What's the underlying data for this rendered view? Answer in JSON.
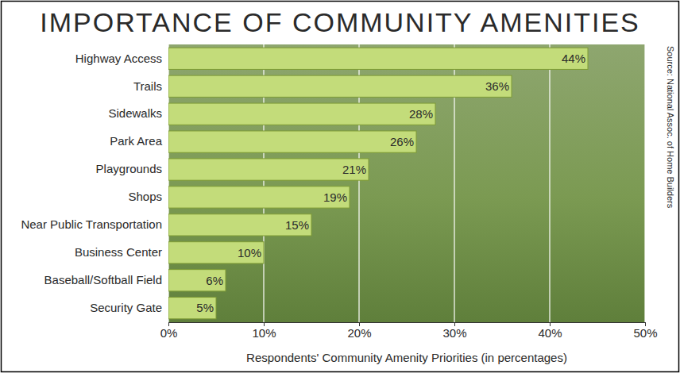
{
  "chart_data": {
    "type": "bar",
    "orientation": "horizontal",
    "title": "IMPORTANCE OF COMMUNITY AMENITIES",
    "x_label": "Respondents' Community Amenity Priorities (in percentages)",
    "annotations": [
      "Source: National Assoc. of Home Builders"
    ],
    "categories": [
      "Highway Access",
      "Trails",
      "Sidewalks",
      "Park Area",
      "Playgrounds",
      "Shops",
      "Near Public Transportation",
      "Business Center",
      "Baseball/Softball Field",
      "Security Gate"
    ],
    "values": [
      44,
      36,
      28,
      26,
      21,
      19,
      15,
      10,
      6,
      5
    ],
    "value_labels": [
      "44%",
      "36%",
      "28%",
      "26%",
      "21%",
      "19%",
      "15%",
      "10%",
      "6%",
      "5%"
    ],
    "color": "#c3dc7a",
    "xlim": [
      0,
      50
    ],
    "xticks": [
      {
        "value": 0,
        "label": "0%"
      },
      {
        "value": 10,
        "label": "10%"
      },
      {
        "value": 20,
        "label": "20%"
      },
      {
        "value": 30,
        "label": "30%"
      },
      {
        "value": 40,
        "label": "40%"
      },
      {
        "value": 50,
        "label": "50%"
      }
    ],
    "grid": true,
    "data_labels": true
  }
}
